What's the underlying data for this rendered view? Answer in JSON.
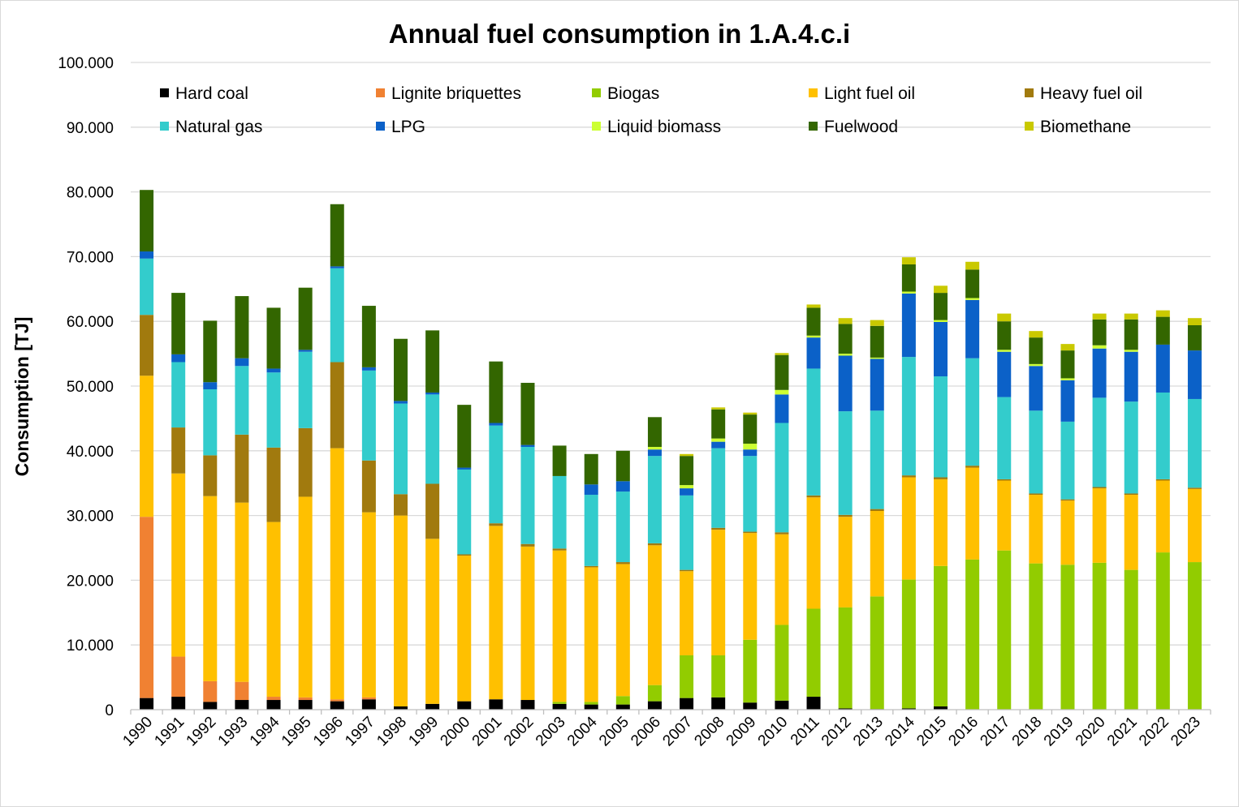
{
  "chart_data": {
    "type": "bar",
    "stacked": true,
    "title": "Annual fuel consumption in 1.A.4.c.i",
    "xlabel": "",
    "ylabel": "Consumption [TJ]",
    "ylim": [
      0,
      100000
    ],
    "yticks": [
      "0",
      "10.000",
      "20.000",
      "30.000",
      "40.000",
      "50.000",
      "60.000",
      "70.000",
      "80.000",
      "90.000",
      "100.000"
    ],
    "grid": true,
    "legend_position": "top, inside plot area",
    "categories": [
      "1990",
      "1991",
      "1992",
      "1993",
      "1994",
      "1995",
      "1996",
      "1997",
      "1998",
      "1999",
      "2000",
      "2001",
      "2002",
      "2003",
      "2004",
      "2005",
      "2006",
      "2007",
      "2008",
      "2009",
      "2010",
      "2011",
      "2012",
      "2013",
      "2014",
      "2015",
      "2016",
      "2017",
      "2018",
      "2019",
      "2020",
      "2021",
      "2022",
      "2023"
    ],
    "series": [
      {
        "name": "Hard coal",
        "color": "#000000",
        "values": [
          1800,
          2000,
          1200,
          1500,
          1500,
          1500,
          1300,
          1600,
          500,
          900,
          1300,
          1600,
          1500,
          900,
          800,
          800,
          1300,
          1800,
          1900,
          1100,
          1400,
          2000,
          200,
          100,
          200,
          500,
          0,
          0,
          0,
          0,
          0,
          0,
          0,
          0
        ]
      },
      {
        "name": "Lignite briquettes",
        "color": "#F08132",
        "values": [
          28000,
          6200,
          3200,
          2800,
          500,
          400,
          300,
          300,
          0,
          0,
          0,
          0,
          0,
          0,
          0,
          0,
          0,
          0,
          0,
          0,
          0,
          0,
          0,
          0,
          0,
          0,
          0,
          0,
          0,
          0,
          0,
          0,
          0,
          0
        ]
      },
      {
        "name": "Biogas",
        "color": "#92CC00",
        "values": [
          0,
          0,
          0,
          0,
          0,
          0,
          0,
          0,
          0,
          0,
          0,
          0,
          0,
          300,
          400,
          1300,
          2500,
          6600,
          6500,
          9700,
          11700,
          13600,
          15600,
          17400,
          19900,
          21700,
          23200,
          24600,
          22600,
          22400,
          22700,
          21600,
          24300,
          22800
        ]
      },
      {
        "name": "Light fuel oil",
        "color": "#FFC000",
        "values": [
          21800,
          28300,
          28600,
          27700,
          27000,
          31000,
          38800,
          28600,
          29500,
          25500,
          22500,
          26800,
          23700,
          23400,
          20800,
          20400,
          21600,
          13000,
          19400,
          16500,
          14000,
          17200,
          14000,
          13200,
          15800,
          13400,
          14200,
          10800,
          10600,
          9900,
          11500,
          11600,
          11100,
          11300
        ]
      },
      {
        "name": "Heavy fuel oil",
        "color": "#A17A0E",
        "values": [
          9400,
          7100,
          6300,
          10500,
          11500,
          10600,
          13300,
          8000,
          3300,
          8500,
          200,
          400,
          400,
          300,
          200,
          300,
          300,
          200,
          300,
          200,
          300,
          300,
          300,
          300,
          300,
          300,
          300,
          200,
          200,
          200,
          200,
          200,
          200,
          200
        ]
      },
      {
        "name": "Natural gas",
        "color": "#33CCCC",
        "values": [
          8700,
          10100,
          10200,
          10600,
          11600,
          11800,
          14500,
          13900,
          14000,
          13800,
          13100,
          15100,
          15000,
          11200,
          11000,
          10900,
          13500,
          11500,
          12300,
          11700,
          16900,
          19600,
          16000,
          15200,
          18300,
          15600,
          16600,
          12700,
          12800,
          12000,
          13800,
          14200,
          13400,
          13700
        ]
      },
      {
        "name": "LPG",
        "color": "#0B61C8",
        "values": [
          1100,
          1200,
          1100,
          1200,
          600,
          300,
          300,
          500,
          400,
          300,
          300,
          400,
          300,
          0,
          1600,
          1600,
          1000,
          1100,
          1000,
          1000,
          4400,
          4800,
          8600,
          8000,
          9800,
          8400,
          9000,
          7000,
          6900,
          6400,
          7600,
          7700,
          7400,
          7500
        ]
      },
      {
        "name": "Liquid biomass",
        "color": "#CCFF33",
        "values": [
          0,
          0,
          0,
          0,
          0,
          0,
          0,
          0,
          0,
          0,
          0,
          0,
          0,
          0,
          0,
          0,
          400,
          500,
          500,
          900,
          700,
          300,
          300,
          200,
          300,
          300,
          300,
          300,
          300,
          300,
          500,
          300,
          0,
          0
        ]
      },
      {
        "name": "Fuelwood",
        "color": "#336600",
        "values": [
          9500,
          9500,
          9500,
          9600,
          9400,
          9600,
          9600,
          9500,
          9600,
          9600,
          9700,
          9500,
          9600,
          4700,
          4700,
          4700,
          4600,
          4500,
          4500,
          4500,
          5400,
          4300,
          4600,
          4900,
          4200,
          4200,
          4400,
          4400,
          4100,
          4300,
          4000,
          4700,
          4300,
          3900
        ]
      },
      {
        "name": "Biomethane",
        "color": "#C9C900",
        "values": [
          0,
          0,
          0,
          0,
          0,
          0,
          0,
          0,
          0,
          0,
          0,
          0,
          0,
          0,
          0,
          0,
          0,
          300,
          300,
          300,
          300,
          500,
          900,
          900,
          1100,
          1100,
          1200,
          1200,
          1000,
          1000,
          900,
          900,
          1000,
          1100
        ]
      }
    ]
  },
  "colors": {
    "background": "#FFFFFF",
    "gridline": "#D9D9D9",
    "axis": "#BFBFBF",
    "frame": "#D9D9D9"
  }
}
